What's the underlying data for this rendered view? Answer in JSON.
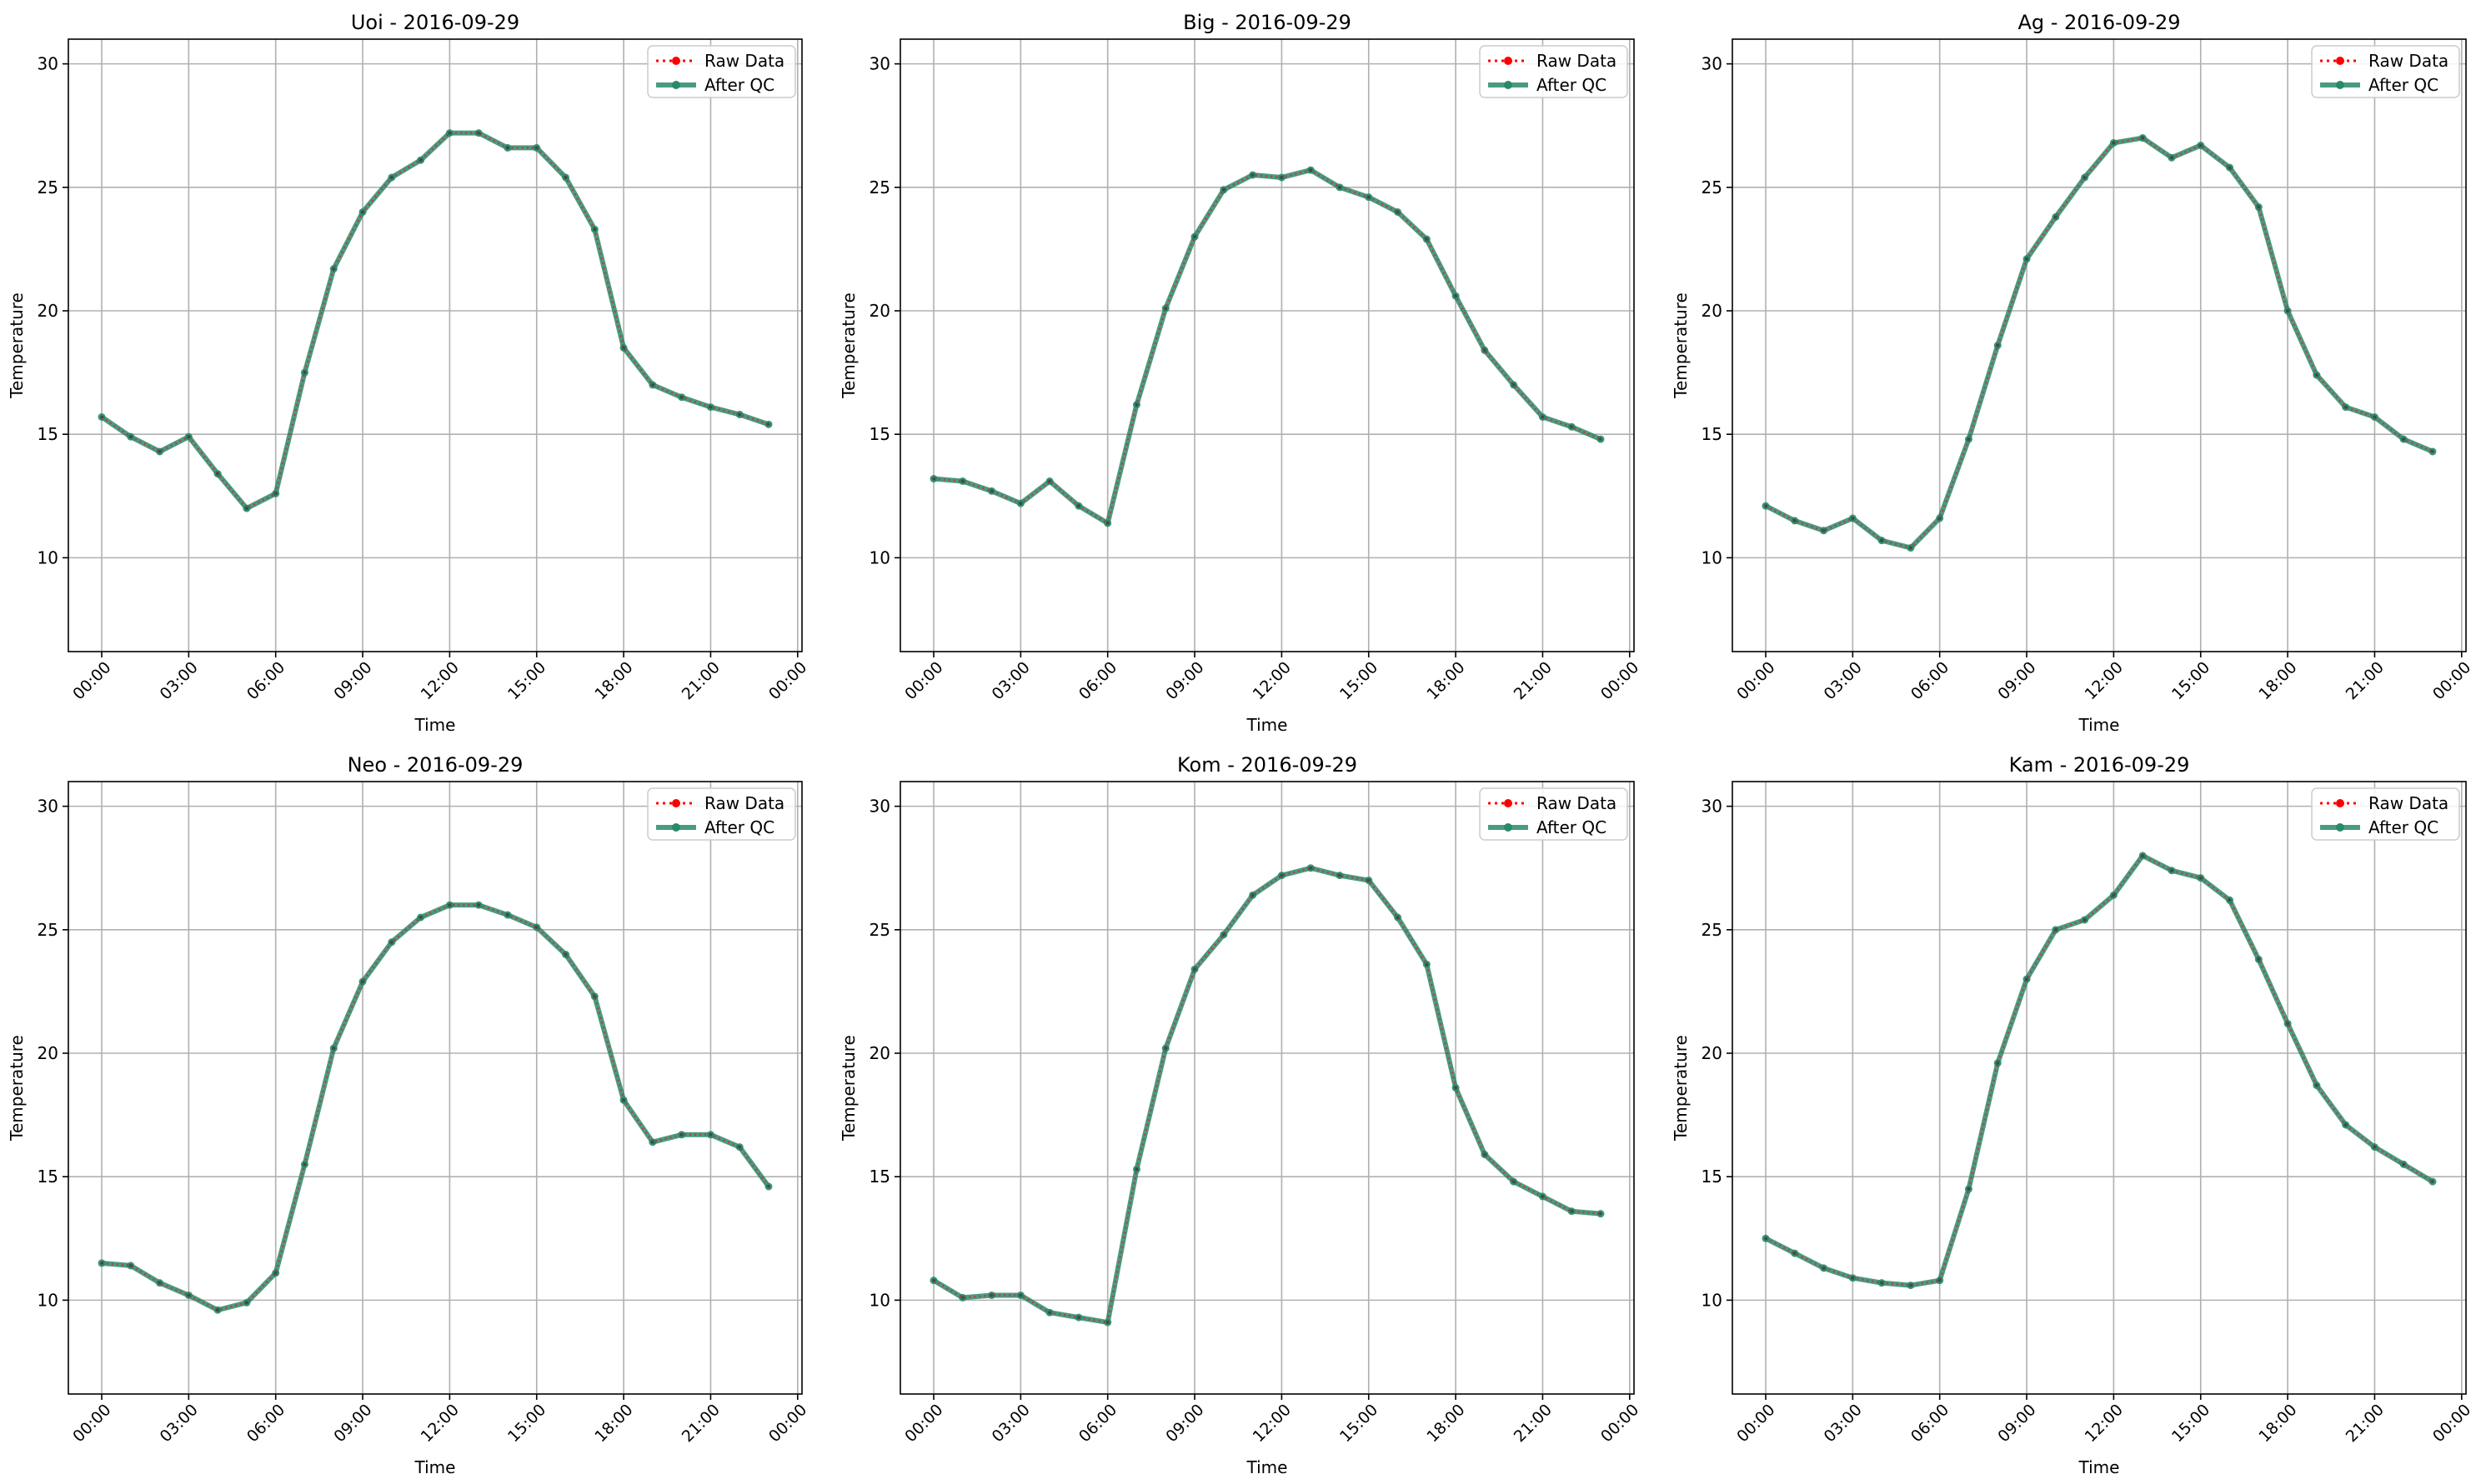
{
  "chart_data": [
    {
      "type": "line",
      "title": "Uoi - 2016-09-29",
      "xlabel": "Time",
      "ylabel": "Temperature",
      "x_ticks": [
        "00:00",
        "03:00",
        "06:00",
        "09:00",
        "12:00",
        "15:00",
        "18:00",
        "21:00",
        "00:00"
      ],
      "y_ticks": [
        10,
        15,
        20,
        25,
        30
      ],
      "ylim": [
        6.2,
        31
      ],
      "grid": true,
      "legend": "top-right",
      "x_hours": [
        0,
        1,
        2,
        3,
        4,
        5,
        6,
        7,
        8,
        9,
        10,
        11,
        12,
        13,
        14,
        15,
        16,
        17,
        18,
        19,
        20,
        21,
        22,
        23
      ],
      "series": [
        {
          "name": "Raw Data",
          "color": "#ff0000",
          "style": "dotted",
          "values": [
            15.7,
            14.9,
            14.3,
            14.9,
            13.4,
            12.0,
            12.6,
            17.5,
            21.7,
            24.0,
            25.4,
            26.1,
            27.2,
            27.2,
            26.6,
            26.6,
            25.4,
            23.3,
            18.5,
            17.0,
            16.5,
            16.1,
            15.8,
            15.4
          ]
        },
        {
          "name": "After QC",
          "color": "#2a8a6b",
          "style": "solid",
          "values": [
            15.7,
            14.9,
            14.3,
            14.9,
            13.4,
            12.0,
            12.6,
            17.5,
            21.7,
            24.0,
            25.4,
            26.1,
            27.2,
            27.2,
            26.6,
            26.6,
            25.4,
            23.3,
            18.5,
            17.0,
            16.5,
            16.1,
            15.8,
            15.4
          ]
        }
      ]
    },
    {
      "type": "line",
      "title": "Big - 2016-09-29",
      "xlabel": "Time",
      "ylabel": "Temperature",
      "x_ticks": [
        "00:00",
        "03:00",
        "06:00",
        "09:00",
        "12:00",
        "15:00",
        "18:00",
        "21:00",
        "00:00"
      ],
      "y_ticks": [
        10,
        15,
        20,
        25,
        30
      ],
      "ylim": [
        6.2,
        31
      ],
      "grid": true,
      "legend": "top-right",
      "x_hours": [
        0,
        1,
        2,
        3,
        4,
        5,
        6,
        7,
        8,
        9,
        10,
        11,
        12,
        13,
        14,
        15,
        16,
        17,
        18,
        19,
        20,
        21,
        22,
        23
      ],
      "series": [
        {
          "name": "Raw Data",
          "color": "#ff0000",
          "style": "dotted",
          "values": [
            13.2,
            13.1,
            12.7,
            12.2,
            13.1,
            12.1,
            11.4,
            16.2,
            20.1,
            23.0,
            24.9,
            25.5,
            25.4,
            25.7,
            25.0,
            24.6,
            24.0,
            22.9,
            20.6,
            18.4,
            17.0,
            15.7,
            15.3,
            14.8
          ]
        },
        {
          "name": "After QC",
          "color": "#2a8a6b",
          "style": "solid",
          "values": [
            13.2,
            13.1,
            12.7,
            12.2,
            13.1,
            12.1,
            11.4,
            16.2,
            20.1,
            23.0,
            24.9,
            25.5,
            25.4,
            25.7,
            25.0,
            24.6,
            24.0,
            22.9,
            20.6,
            18.4,
            17.0,
            15.7,
            15.3,
            14.8
          ]
        }
      ]
    },
    {
      "type": "line",
      "title": "Ag - 2016-09-29",
      "xlabel": "Time",
      "ylabel": "Temperature",
      "x_ticks": [
        "00:00",
        "03:00",
        "06:00",
        "09:00",
        "12:00",
        "15:00",
        "18:00",
        "21:00",
        "00:00"
      ],
      "y_ticks": [
        10,
        15,
        20,
        25,
        30
      ],
      "ylim": [
        6.2,
        31
      ],
      "grid": true,
      "legend": "top-right",
      "x_hours": [
        0,
        1,
        2,
        3,
        4,
        5,
        6,
        7,
        8,
        9,
        10,
        11,
        12,
        13,
        14,
        15,
        16,
        17,
        18,
        19,
        20,
        21,
        22,
        23
      ],
      "series": [
        {
          "name": "Raw Data",
          "color": "#ff0000",
          "style": "dotted",
          "values": [
            12.1,
            11.5,
            11.1,
            11.6,
            10.7,
            10.4,
            11.6,
            14.8,
            18.6,
            22.1,
            23.8,
            25.4,
            26.8,
            27.0,
            26.2,
            26.7,
            25.8,
            24.2,
            20.0,
            17.4,
            16.1,
            15.7,
            14.8,
            14.3
          ]
        },
        {
          "name": "After QC",
          "color": "#2a8a6b",
          "style": "solid",
          "values": [
            12.1,
            11.5,
            11.1,
            11.6,
            10.7,
            10.4,
            11.6,
            14.8,
            18.6,
            22.1,
            23.8,
            25.4,
            26.8,
            27.0,
            26.2,
            26.7,
            25.8,
            24.2,
            20.0,
            17.4,
            16.1,
            15.7,
            14.8,
            14.3
          ]
        }
      ]
    },
    {
      "type": "line",
      "title": "Neo - 2016-09-29",
      "xlabel": "Time",
      "ylabel": "Temperature",
      "x_ticks": [
        "00:00",
        "03:00",
        "06:00",
        "09:00",
        "12:00",
        "15:00",
        "18:00",
        "21:00",
        "00:00"
      ],
      "y_ticks": [
        10,
        15,
        20,
        25,
        30
      ],
      "ylim": [
        6.2,
        31
      ],
      "grid": true,
      "legend": "top-right",
      "x_hours": [
        0,
        1,
        2,
        3,
        4,
        5,
        6,
        7,
        8,
        9,
        10,
        11,
        12,
        13,
        14,
        15,
        16,
        17,
        18,
        19,
        20,
        21,
        22,
        23
      ],
      "series": [
        {
          "name": "Raw Data",
          "color": "#ff0000",
          "style": "dotted",
          "values": [
            11.5,
            11.4,
            10.7,
            10.2,
            9.6,
            9.9,
            11.1,
            15.5,
            20.2,
            22.9,
            24.5,
            25.5,
            26.0,
            26.0,
            25.6,
            25.1,
            24.0,
            22.3,
            18.1,
            16.4,
            16.7,
            16.7,
            16.2,
            14.6
          ]
        },
        {
          "name": "After QC",
          "color": "#2a8a6b",
          "style": "solid",
          "values": [
            11.5,
            11.4,
            10.7,
            10.2,
            9.6,
            9.9,
            11.1,
            15.5,
            20.2,
            22.9,
            24.5,
            25.5,
            26.0,
            26.0,
            25.6,
            25.1,
            24.0,
            22.3,
            18.1,
            16.4,
            16.7,
            16.7,
            16.2,
            14.6
          ]
        }
      ]
    },
    {
      "type": "line",
      "title": "Kom - 2016-09-29",
      "xlabel": "Time",
      "ylabel": "Temperature",
      "x_ticks": [
        "00:00",
        "03:00",
        "06:00",
        "09:00",
        "12:00",
        "15:00",
        "18:00",
        "21:00",
        "00:00"
      ],
      "y_ticks": [
        10,
        15,
        20,
        25,
        30
      ],
      "ylim": [
        6.2,
        31
      ],
      "grid": true,
      "legend": "top-right",
      "x_hours": [
        0,
        1,
        2,
        3,
        4,
        5,
        6,
        7,
        8,
        9,
        10,
        11,
        12,
        13,
        14,
        15,
        16,
        17,
        18,
        19,
        20,
        21,
        22,
        23
      ],
      "series": [
        {
          "name": "Raw Data",
          "color": "#ff0000",
          "style": "dotted",
          "values": [
            10.8,
            10.1,
            10.2,
            10.2,
            9.5,
            9.3,
            9.1,
            15.3,
            20.2,
            23.4,
            24.8,
            26.4,
            27.2,
            27.5,
            27.2,
            27.0,
            25.5,
            23.6,
            18.6,
            15.9,
            14.8,
            14.2,
            13.6,
            13.5
          ]
        },
        {
          "name": "After QC",
          "color": "#2a8a6b",
          "style": "solid",
          "values": [
            10.8,
            10.1,
            10.2,
            10.2,
            9.5,
            9.3,
            9.1,
            15.3,
            20.2,
            23.4,
            24.8,
            26.4,
            27.2,
            27.5,
            27.2,
            27.0,
            25.5,
            23.6,
            18.6,
            15.9,
            14.8,
            14.2,
            13.6,
            13.5
          ]
        }
      ]
    },
    {
      "type": "line",
      "title": "Kam - 2016-09-29",
      "xlabel": "Time",
      "ylabel": "Temperature",
      "x_ticks": [
        "00:00",
        "03:00",
        "06:00",
        "09:00",
        "12:00",
        "15:00",
        "18:00",
        "21:00",
        "00:00"
      ],
      "y_ticks": [
        10,
        15,
        20,
        25,
        30
      ],
      "ylim": [
        6.2,
        31
      ],
      "grid": true,
      "legend": "top-right",
      "x_hours": [
        0,
        1,
        2,
        3,
        4,
        5,
        6,
        7,
        8,
        9,
        10,
        11,
        12,
        13,
        14,
        15,
        16,
        17,
        18,
        19,
        20,
        21,
        22,
        23
      ],
      "series": [
        {
          "name": "Raw Data",
          "color": "#ff0000",
          "style": "dotted",
          "values": [
            12.5,
            11.9,
            11.3,
            10.9,
            10.7,
            10.6,
            10.8,
            14.5,
            19.6,
            23.0,
            25.0,
            25.4,
            26.4,
            28.0,
            27.4,
            27.1,
            26.2,
            23.8,
            21.2,
            18.7,
            17.1,
            16.2,
            15.5,
            14.8
          ]
        },
        {
          "name": "After QC",
          "color": "#2a8a6b",
          "style": "solid",
          "values": [
            12.5,
            11.9,
            11.3,
            10.9,
            10.7,
            10.6,
            10.8,
            14.5,
            19.6,
            23.0,
            25.0,
            25.4,
            26.4,
            28.0,
            27.4,
            27.1,
            26.2,
            23.8,
            21.2,
            18.7,
            17.1,
            16.2,
            15.5,
            14.8
          ]
        }
      ]
    }
  ]
}
